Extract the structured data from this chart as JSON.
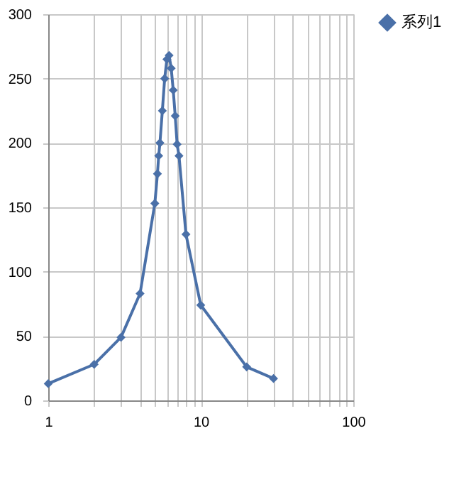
{
  "chart_data": {
    "type": "line",
    "x": [
      1,
      2,
      3,
      4,
      5,
      5.2,
      5.3,
      5.4,
      5.6,
      5.8,
      6.0,
      6.2,
      6.4,
      6.6,
      6.8,
      7.0,
      7.2,
      8,
      10,
      20,
      30
    ],
    "series": [
      {
        "name": "系列1",
        "color": "#4a70a8",
        "values": [
          13,
          28,
          49,
          83,
          153,
          176,
          190,
          200,
          225,
          250,
          265,
          268,
          258,
          241,
          221,
          199,
          190,
          129,
          74,
          26,
          17
        ]
      }
    ],
    "log": "x",
    "xlim": [
      1,
      100
    ],
    "xticks": [
      1,
      {
        "value": 2,
        "label": null
      },
      {
        "value": 3,
        "label": null
      },
      {
        "value": 4,
        "label": null
      },
      {
        "value": 5,
        "label": null
      },
      {
        "value": 6,
        "label": null
      },
      {
        "value": 7,
        "label": null
      },
      {
        "value": 8,
        "label": null
      },
      {
        "value": 9,
        "label": null
      },
      10,
      {
        "value": 20,
        "label": null
      },
      {
        "value": 30,
        "label": null
      },
      {
        "value": 40,
        "label": null
      },
      {
        "value": 50,
        "label": null
      },
      {
        "value": 60,
        "label": null
      },
      {
        "value": 70,
        "label": null
      },
      {
        "value": 80,
        "label": null
      },
      {
        "value": 90,
        "label": null
      },
      100
    ],
    "ylim": [
      0,
      300
    ],
    "yticks": [
      0,
      50,
      100,
      150,
      200,
      250,
      300
    ],
    "grid": true,
    "legend": "right",
    "marker": "diamond",
    "line_style": "solid"
  }
}
